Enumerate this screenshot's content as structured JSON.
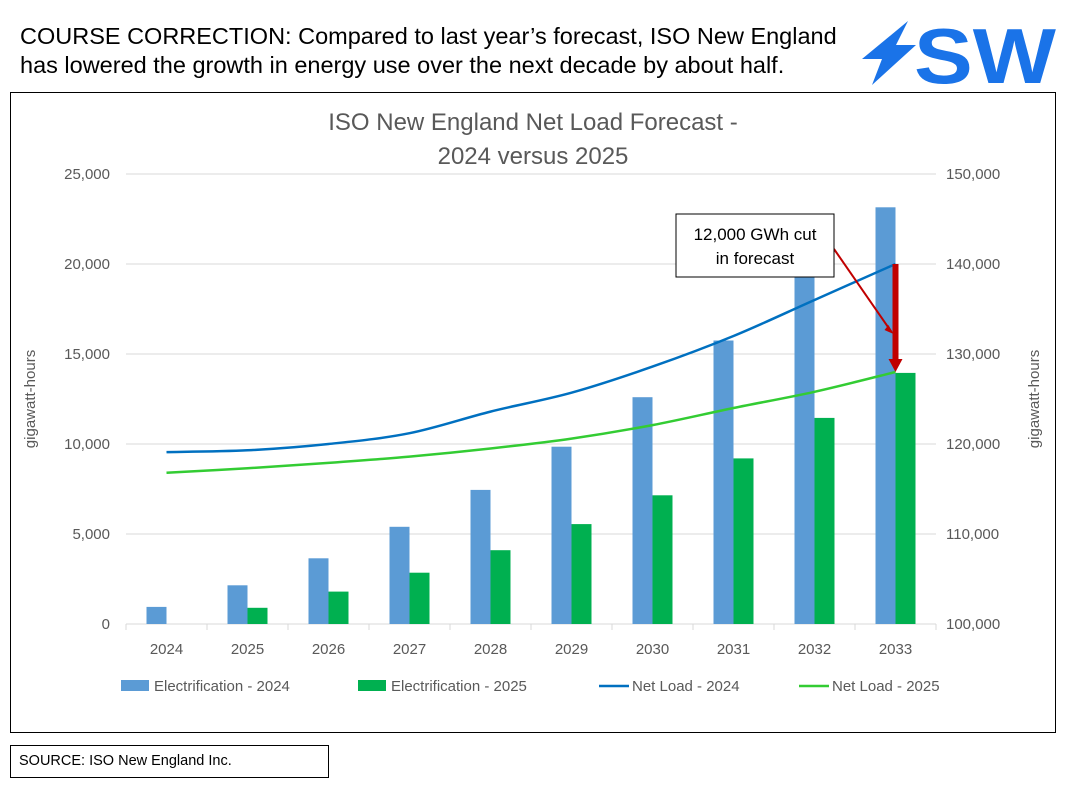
{
  "headline": "COURSE CORRECTION: Compared to last year’s forecast, ISO New England has lowered the growth in energy use over the next decade by about half.",
  "logo": {
    "text": "SW",
    "icon": "lightning-bolt-icon",
    "color": "#1a73e8"
  },
  "source": "SOURCE: ISO New England Inc.",
  "colors": {
    "electrification_2024": "#5b9bd5",
    "electrification_2025": "#00b050",
    "net_load_2024": "#0070c0",
    "net_load_2025": "#33cc33",
    "arrow": "#c00000"
  },
  "chart_data": {
    "type": "bar",
    "title_line1": "ISO New England Net Load Forecast -",
    "title_line2": "2024 versus 2025",
    "categories": [
      "2024",
      "2025",
      "2026",
      "2027",
      "2028",
      "2029",
      "2030",
      "2031",
      "2032",
      "2033"
    ],
    "ylabel_left": "gigawatt-hours",
    "ylabel_right": "gigawatt-hours",
    "ylim_left": [
      0,
      25000
    ],
    "ylim_right": [
      100000,
      150000
    ],
    "yticks_left": [
      "0",
      "5,000",
      "10,000",
      "15,000",
      "20,000",
      "25,000"
    ],
    "yticks_right": [
      "100,000",
      "110,000",
      "120,000",
      "130,000",
      "140,000",
      "150,000"
    ],
    "gridlines": true,
    "series": [
      {
        "name": "Electrification - 2024",
        "kind": "bar",
        "axis": "left",
        "values": [
          950,
          2150,
          3650,
          5400,
          7450,
          9850,
          12600,
          15750,
          19450,
          23150
        ]
      },
      {
        "name": "Electrification - 2025",
        "kind": "bar",
        "axis": "left",
        "values": [
          0,
          900,
          1800,
          2850,
          4100,
          5550,
          7150,
          9200,
          11450,
          13950
        ]
      },
      {
        "name": "Net Load - 2024",
        "kind": "line",
        "axis": "right",
        "values": [
          119100,
          119300,
          120000,
          121200,
          123600,
          125700,
          128600,
          132000,
          136000,
          140000
        ]
      },
      {
        "name": "Net Load - 2025",
        "kind": "line",
        "axis": "right",
        "values": [
          116800,
          117300,
          117900,
          118600,
          119500,
          120600,
          122100,
          124000,
          125800,
          128000
        ]
      }
    ],
    "legend_position": "bottom",
    "annotation": {
      "line1": "12,000 GWh cut",
      "line2": "in forecast",
      "category": "2033",
      "from_value": 140000,
      "to_value": 128000
    }
  }
}
